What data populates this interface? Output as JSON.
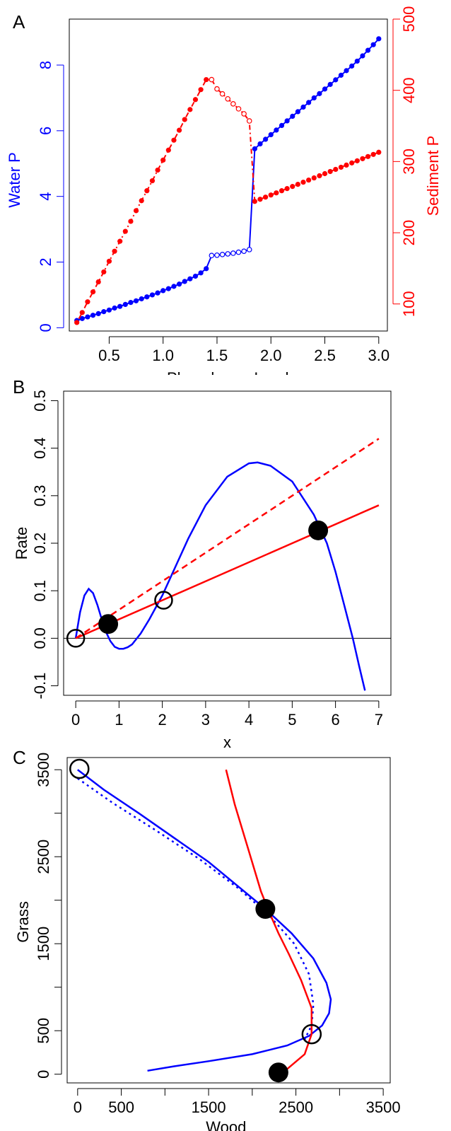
{
  "chart_data": [
    {
      "panel": "A",
      "type": "scatter",
      "xlabel": "Phosphorus Load",
      "ylabel_left": "Water P",
      "ylabel_right": "Sediment P",
      "xlim": [
        0.13,
        3.08
      ],
      "ylim_left": [
        -0.1,
        9.4
      ],
      "ylim_right": [
        62,
        500
      ],
      "xticks": [
        "0.5",
        "1.0",
        "1.5",
        "2.0",
        "2.5",
        "3.0"
      ],
      "xtick_values": [
        0.5,
        1.0,
        1.5,
        2.0,
        2.5,
        3.0
      ],
      "yticks_left": [
        "0",
        "2",
        "4",
        "6",
        "8"
      ],
      "ytick_values_left": [
        0,
        2,
        4,
        6,
        8
      ],
      "yticks_right": [
        "100",
        "200",
        "300",
        "400",
        "500"
      ],
      "ytick_values_right": [
        100,
        200,
        300,
        400,
        500
      ],
      "grid": false,
      "colors": {
        "water": "#0000ff",
        "sediment": "#ff0000"
      },
      "series": [
        {
          "name": "Water P",
          "color": "#0000ff",
          "filled": [
            [
              0.2,
              0.22
            ],
            [
              0.25,
              0.28
            ],
            [
              0.3,
              0.33
            ],
            [
              0.35,
              0.38
            ],
            [
              0.4,
              0.43
            ],
            [
              0.45,
              0.49
            ],
            [
              0.5,
              0.54
            ],
            [
              0.55,
              0.6
            ],
            [
              0.6,
              0.65
            ],
            [
              0.65,
              0.71
            ],
            [
              0.7,
              0.77
            ],
            [
              0.75,
              0.82
            ],
            [
              0.8,
              0.88
            ],
            [
              0.85,
              0.94
            ],
            [
              0.9,
              1.0
            ],
            [
              0.95,
              1.06
            ],
            [
              1.0,
              1.13
            ],
            [
              1.05,
              1.19
            ],
            [
              1.1,
              1.26
            ],
            [
              1.15,
              1.33
            ],
            [
              1.2,
              1.41
            ],
            [
              1.25,
              1.49
            ],
            [
              1.3,
              1.57
            ],
            [
              1.35,
              1.67
            ],
            [
              1.4,
              1.8
            ],
            [
              1.85,
              5.45
            ],
            [
              1.9,
              5.6
            ],
            [
              1.95,
              5.74
            ],
            [
              2.0,
              5.88
            ],
            [
              2.05,
              6.02
            ],
            [
              2.1,
              6.16
            ],
            [
              2.15,
              6.3
            ],
            [
              2.2,
              6.44
            ],
            [
              2.25,
              6.58
            ],
            [
              2.3,
              6.72
            ],
            [
              2.35,
              6.86
            ],
            [
              2.4,
              7.0
            ],
            [
              2.45,
              7.13
            ],
            [
              2.5,
              7.27
            ],
            [
              2.55,
              7.41
            ],
            [
              2.6,
              7.55
            ],
            [
              2.65,
              7.69
            ],
            [
              2.7,
              7.83
            ],
            [
              2.75,
              7.97
            ],
            [
              2.8,
              8.12
            ],
            [
              2.85,
              8.28
            ],
            [
              2.9,
              8.45
            ],
            [
              2.95,
              8.62
            ],
            [
              3.0,
              8.8
            ]
          ],
          "open": [
            [
              1.45,
              2.2
            ],
            [
              1.5,
              2.21
            ],
            [
              1.55,
              2.23
            ],
            [
              1.6,
              2.25
            ],
            [
              1.65,
              2.27
            ],
            [
              1.7,
              2.3
            ],
            [
              1.75,
              2.33
            ],
            [
              1.8,
              2.38
            ]
          ]
        },
        {
          "name": "Sediment P",
          "color": "#ff0000",
          "filled": [
            [
              0.2,
              74
            ],
            [
              0.25,
              88
            ],
            [
              0.3,
              103
            ],
            [
              0.35,
              117
            ],
            [
              0.4,
              131
            ],
            [
              0.45,
              145
            ],
            [
              0.5,
              160
            ],
            [
              0.55,
              174
            ],
            [
              0.6,
              188
            ],
            [
              0.65,
              202
            ],
            [
              0.7,
              216
            ],
            [
              0.75,
              231
            ],
            [
              0.8,
              245
            ],
            [
              0.85,
              259
            ],
            [
              0.9,
              273
            ],
            [
              0.95,
              288
            ],
            [
              1.0,
              302
            ],
            [
              1.05,
              316
            ],
            [
              1.1,
              330
            ],
            [
              1.15,
              344
            ],
            [
              1.2,
              359
            ],
            [
              1.25,
              373
            ],
            [
              1.3,
              387
            ],
            [
              1.35,
              401
            ],
            [
              1.4,
              415
            ],
            [
              1.85,
              244
            ],
            [
              1.9,
              247
            ],
            [
              1.95,
              250
            ],
            [
              2.0,
              253
            ],
            [
              2.05,
              256
            ],
            [
              2.1,
              259
            ],
            [
              2.15,
              262
            ],
            [
              2.2,
              265
            ],
            [
              2.25,
              268
            ],
            [
              2.3,
              271
            ],
            [
              2.35,
              274
            ],
            [
              2.4,
              277
            ],
            [
              2.45,
              280
            ],
            [
              2.5,
              283
            ],
            [
              2.55,
              286
            ],
            [
              2.6,
              289
            ],
            [
              2.65,
              292
            ],
            [
              2.7,
              295
            ],
            [
              2.75,
              298
            ],
            [
              2.8,
              301
            ],
            [
              2.85,
              304
            ],
            [
              2.9,
              307
            ],
            [
              2.95,
              310
            ],
            [
              3.0,
              313
            ]
          ],
          "open": [
            [
              1.45,
              415
            ],
            [
              1.5,
              402
            ],
            [
              1.55,
              395
            ],
            [
              1.6,
              388
            ],
            [
              1.65,
              381
            ],
            [
              1.7,
              374
            ],
            [
              1.75,
              367
            ],
            [
              1.8,
              357
            ]
          ]
        }
      ]
    },
    {
      "panel": "B",
      "type": "line",
      "xlabel": "x",
      "ylabel": "Rate",
      "xlim": [
        -0.28,
        7.28
      ],
      "ylim": [
        -0.12,
        0.52
      ],
      "xticks": [
        "0",
        "1",
        "2",
        "3",
        "4",
        "5",
        "6",
        "7"
      ],
      "xtick_values": [
        0,
        1,
        2,
        3,
        4,
        5,
        6,
        7
      ],
      "yticks": [
        "-0.1",
        "0.0",
        "0.1",
        "0.2",
        "0.3",
        "0.4",
        "0.5"
      ],
      "ytick_values": [
        -0.1,
        0.0,
        0.1,
        0.2,
        0.3,
        0.4,
        0.5
      ],
      "grid": false,
      "hline": 0,
      "series": [
        {
          "color": "#0000ff",
          "style": "solid",
          "x": [
            0,
            0.1,
            0.2,
            0.3,
            0.4,
            0.5,
            0.6,
            0.7,
            0.8,
            0.9,
            1.0,
            1.1,
            1.2,
            1.3,
            1.5,
            1.7,
            2.0,
            2.3,
            2.6,
            3.0,
            3.5,
            4.0,
            4.2,
            4.5,
            5.0,
            5.5,
            5.8,
            6.0,
            6.2,
            6.4,
            6.55,
            6.68
          ],
          "y": [
            0.0,
            0.055,
            0.09,
            0.104,
            0.095,
            0.07,
            0.04,
            0.013,
            -0.006,
            -0.018,
            -0.022,
            -0.022,
            -0.019,
            -0.013,
            0.01,
            0.04,
            0.09,
            0.15,
            0.21,
            0.28,
            0.34,
            0.368,
            0.37,
            0.363,
            0.33,
            0.26,
            0.2,
            0.14,
            0.07,
            0.0,
            -0.06,
            -0.11
          ]
        },
        {
          "color": "#ff0000",
          "style": "solid",
          "x": [
            0,
            7
          ],
          "y": [
            0,
            0.28
          ]
        },
        {
          "color": "#ff0000",
          "style": "dashed",
          "x": [
            0,
            7
          ],
          "y": [
            0,
            0.42
          ]
        }
      ],
      "points": [
        {
          "x": 0.0,
          "y": 0.0,
          "filled": false
        },
        {
          "x": 0.75,
          "y": 0.03,
          "filled": true
        },
        {
          "x": 2.03,
          "y": 0.08,
          "filled": false
        },
        {
          "x": 5.6,
          "y": 0.227,
          "filled": true
        }
      ]
    },
    {
      "panel": "C",
      "type": "line",
      "xlabel": "Wood",
      "ylabel": "Grass",
      "xlim": [
        -120,
        3580
      ],
      "ylim": [
        -100,
        3640
      ],
      "xticks": [
        "0",
        "500",
        "1500",
        "2500",
        "3500"
      ],
      "xtick_values": [
        0,
        500,
        1500,
        2500,
        3500
      ],
      "xminor_values": [
        1000,
        2000,
        3000
      ],
      "yticks": [
        "0",
        "500",
        "1500",
        "2500",
        "3500"
      ],
      "ytick_values": [
        0,
        500,
        1500,
        2500,
        3500
      ],
      "yminor_values": [
        1000,
        2000,
        3000
      ],
      "grid": false,
      "series": [
        {
          "color": "#0000ff",
          "style": "solid",
          "x": [
            0,
            300,
            700,
            1100,
            1500,
            1850,
            2150,
            2450,
            2700,
            2850,
            2900,
            2880,
            2800,
            2650,
            2400,
            2000,
            1500,
            1100,
            800
          ],
          "y": [
            3500,
            3270,
            3000,
            2720,
            2440,
            2150,
            1900,
            1620,
            1330,
            1050,
            860,
            700,
            560,
            440,
            330,
            230,
            150,
            90,
            40
          ]
        },
        {
          "color": "#0000ff",
          "style": "dotted",
          "x": [
            0,
            400,
            900,
            1400,
            1850,
            2200,
            2480,
            2650,
            2700,
            2680,
            2600
          ],
          "y": [
            3400,
            3120,
            2800,
            2470,
            2130,
            1820,
            1500,
            1150,
            800,
            560,
            400
          ]
        },
        {
          "color": "#ff0000",
          "style": "solid",
          "x": [
            1700,
            1800,
            1950,
            2100,
            2200,
            2300,
            2420,
            2560,
            2680,
            2680,
            2600,
            2400,
            2300
          ],
          "y": [
            3500,
            3100,
            2600,
            2100,
            1850,
            1620,
            1380,
            1080,
            760,
            460,
            230,
            60,
            20
          ]
        }
      ],
      "points": [
        {
          "x": 20,
          "y": 3510,
          "filled": false
        },
        {
          "x": 2150,
          "y": 1900,
          "filled": true
        },
        {
          "x": 2680,
          "y": 460,
          "filled": false
        },
        {
          "x": 2300,
          "y": 20,
          "filled": true
        }
      ]
    }
  ],
  "panels": {
    "a_letter": "A",
    "b_letter": "B",
    "c_letter": "C"
  }
}
